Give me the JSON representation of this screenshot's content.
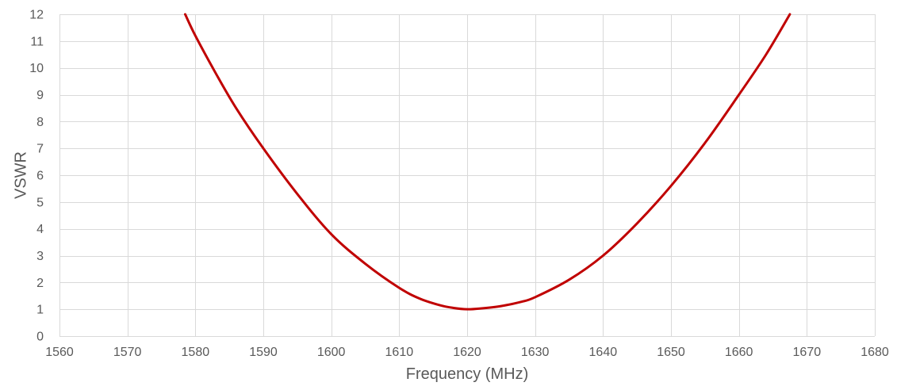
{
  "chart_data": {
    "type": "line",
    "title": "",
    "xlabel": "Frequency (MHz)",
    "ylabel": "VSWR",
    "xlim": [
      1560,
      1680
    ],
    "ylim": [
      0,
      12
    ],
    "x_ticks": [
      1560,
      1570,
      1580,
      1590,
      1600,
      1610,
      1620,
      1630,
      1640,
      1650,
      1660,
      1670,
      1680
    ],
    "y_ticks": [
      0,
      1,
      2,
      3,
      4,
      5,
      6,
      7,
      8,
      9,
      10,
      11,
      12
    ],
    "grid": true,
    "legend": "none",
    "colors": {
      "series": "#c00000",
      "grid": "#d9d9d9",
      "text": "#595959"
    },
    "series": [
      {
        "x": [
          1578.5,
          1580,
          1583,
          1586,
          1590,
          1595,
          1600,
          1605,
          1610,
          1613,
          1616,
          1618,
          1620,
          1622,
          1625,
          1628,
          1630,
          1635,
          1640,
          1645,
          1650,
          1655,
          1660,
          1664,
          1667.5
        ],
        "y": [
          12,
          11.2,
          9.8,
          8.5,
          7.0,
          5.3,
          3.8,
          2.7,
          1.8,
          1.4,
          1.15,
          1.05,
          1.0,
          1.03,
          1.12,
          1.28,
          1.45,
          2.1,
          3.0,
          4.2,
          5.6,
          7.2,
          9.0,
          10.5,
          12
        ]
      }
    ]
  }
}
